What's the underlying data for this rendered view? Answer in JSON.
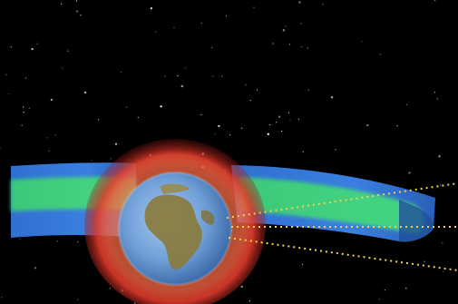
{
  "scene": {
    "subject": "earth-with-radiation-belts",
    "background_color": "#000000",
    "colors": {
      "belt_outer_blue": "#2f6fd0",
      "belt_inner_green": "#3fd86a",
      "halo_red": "#e0392a",
      "halo_orange": "#ff7a4a",
      "ocean": "#6f9fd8",
      "land": "#8a7a3a",
      "orbit_dots": "#f2d24a",
      "stars": "#ffffff"
    },
    "orbit_lines_count": 3
  }
}
